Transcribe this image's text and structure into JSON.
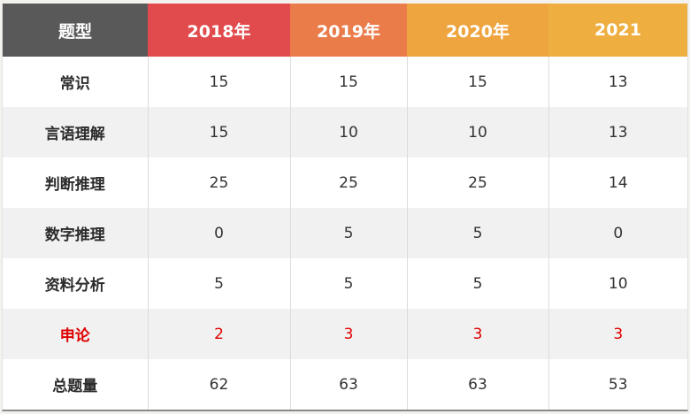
{
  "table": {
    "headers": [
      "题型",
      "2018年",
      "2019年",
      "2020年",
      "2021"
    ],
    "rows": [
      {
        "label": "常识",
        "values": [
          "15",
          "15",
          "15",
          "13"
        ]
      },
      {
        "label": "言语理解",
        "values": [
          "15",
          "10",
          "10",
          "13"
        ]
      },
      {
        "label": "判断推理",
        "values": [
          "25",
          "25",
          "25",
          "14"
        ]
      },
      {
        "label": "数字推理",
        "values": [
          "0",
          "5",
          "5",
          "0"
        ]
      },
      {
        "label": "资料分析",
        "values": [
          "5",
          "5",
          "5",
          "10"
        ]
      },
      {
        "label": "申论",
        "values": [
          "2",
          "3",
          "3",
          "3"
        ],
        "highlight": true
      },
      {
        "label": "总题量",
        "values": [
          "62",
          "63",
          "63",
          "53"
        ]
      }
    ]
  },
  "colors": {
    "header_type": "#595959",
    "header_2018": "#e24b4e",
    "header_2019": "#ea7c4a",
    "header_2020": "#eea43f",
    "header_2021": "#efaf40",
    "highlight_text": "#e00000"
  }
}
